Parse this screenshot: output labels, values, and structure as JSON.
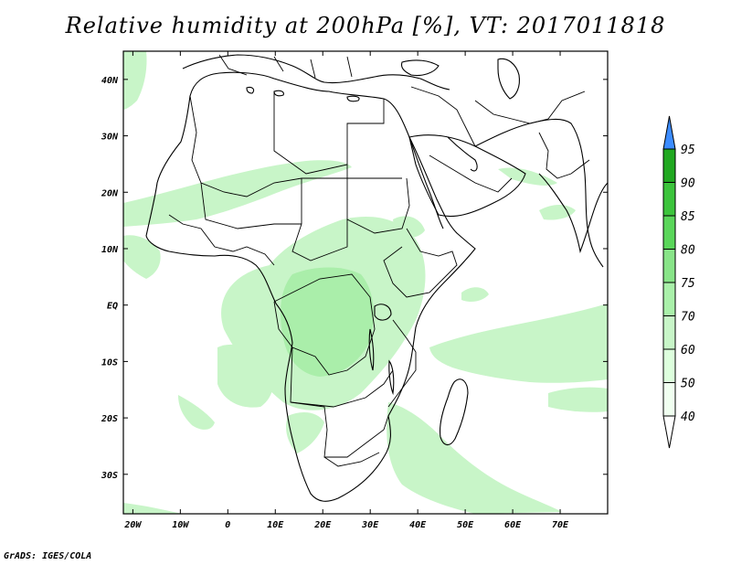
{
  "title": "Relative humidity at 200hPa [%], VT: 2017011818",
  "credit": "GrADS: IGES/COLA",
  "map": {
    "projection": "lat-lon",
    "lon_range": [
      -22,
      80
    ],
    "lat_range": [
      -37,
      45
    ],
    "lon_ticks": [
      {
        "v": -20,
        "label": "20W"
      },
      {
        "v": -10,
        "label": "10W"
      },
      {
        "v": 0,
        "label": "0"
      },
      {
        "v": 10,
        "label": "10E"
      },
      {
        "v": 20,
        "label": "20E"
      },
      {
        "v": 30,
        "label": "30E"
      },
      {
        "v": 40,
        "label": "40E"
      },
      {
        "v": 50,
        "label": "50E"
      },
      {
        "v": 60,
        "label": "60E"
      },
      {
        "v": 70,
        "label": "70E"
      }
    ],
    "lat_ticks": [
      {
        "v": 40,
        "label": "40N"
      },
      {
        "v": 30,
        "label": "30N"
      },
      {
        "v": 20,
        "label": "20N"
      },
      {
        "v": 10,
        "label": "10N"
      },
      {
        "v": 0,
        "label": "EQ"
      },
      {
        "v": -10,
        "label": "10S"
      },
      {
        "v": -20,
        "label": "20S"
      },
      {
        "v": -30,
        "label": "30S"
      }
    ]
  },
  "colorbar": {
    "levels": [
      "40",
      "50",
      "60",
      "70",
      "75",
      "80",
      "85",
      "90",
      "95"
    ],
    "colors": [
      "#f0fff0",
      "#ddffdd",
      "#c8f5c8",
      "#aaf0aa",
      "#88e488",
      "#5ad65a",
      "#3cc43c",
      "#20a820",
      "#3c8cff"
    ]
  },
  "humidity_colors": {
    "light": "#c8f5c8",
    "medium": "#aaeeaa"
  }
}
